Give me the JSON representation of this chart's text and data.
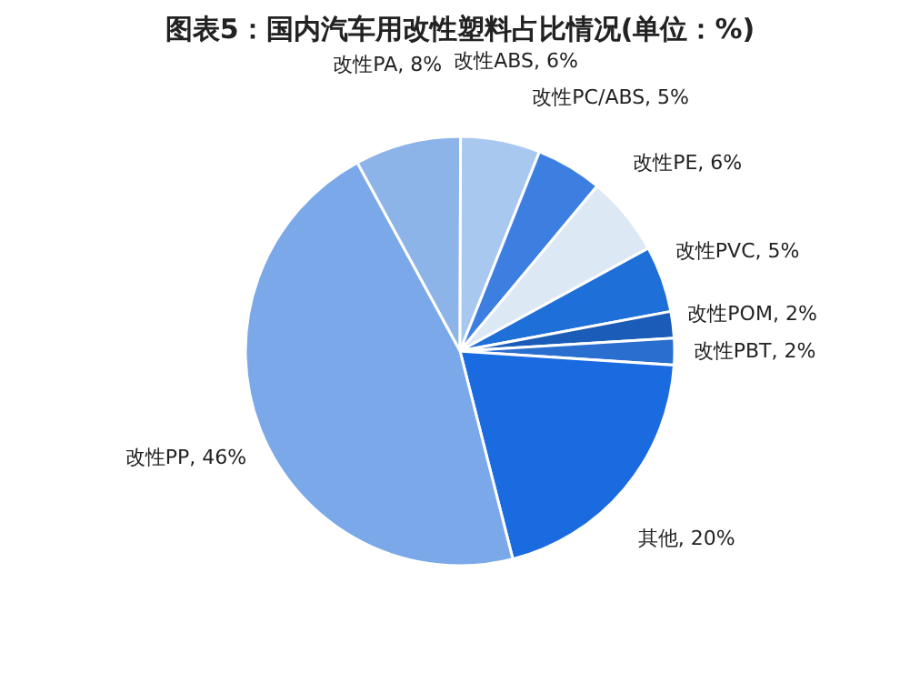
{
  "chart_data": {
    "type": "pie",
    "title": "图表5：国内汽车用改性塑料占比情况(单位：%)",
    "categories": [
      "改性PA",
      "改性ABS",
      "改性PC/ABS",
      "改性PE",
      "改性PVC",
      "改性POM",
      "改性PBT",
      "其他",
      "改性PP"
    ],
    "values": [
      8,
      6,
      5,
      6,
      5,
      2,
      2,
      20,
      46
    ],
    "value_labels": [
      "8%",
      "6%",
      "5%",
      "6%",
      "5%",
      "2%",
      "2%",
      "20%",
      "46%"
    ],
    "colors": [
      "#8db4e8",
      "#a9c8f0",
      "#3d7fe0",
      "#dde8f5",
      "#1f6fd8",
      "#1a5cb8",
      "#2a6fd0",
      "#1a6ae0",
      "#7aa8e8"
    ],
    "legend": false
  }
}
